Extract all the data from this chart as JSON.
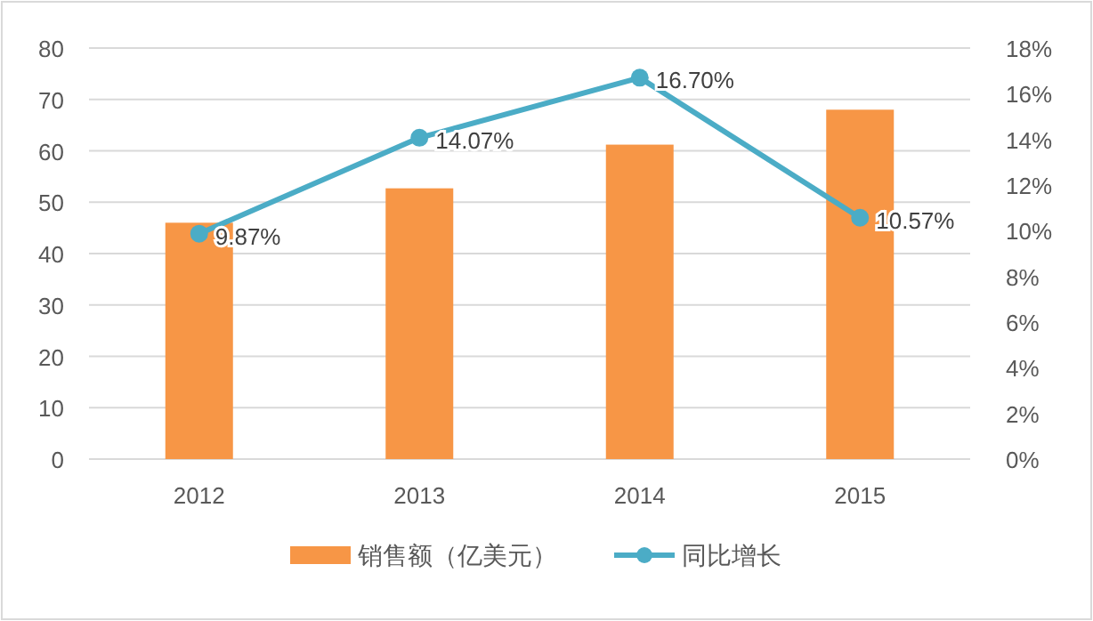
{
  "chart_data": {
    "type": "bar",
    "categories": [
      "2012",
      "2013",
      "2014",
      "2015"
    ],
    "series": [
      {
        "name": "销售额（亿美元）",
        "color": "#f79646",
        "values": [
          46.0,
          52.7,
          61.2,
          68.0
        ]
      },
      {
        "name": "同比增长",
        "type": "line",
        "axis": "y2",
        "color": "#4bacc6",
        "marker": "circle",
        "values": [
          9.87,
          14.07,
          16.7,
          10.57
        ],
        "value_labels": [
          "9.87%",
          "14.07%",
          "16.70%",
          "10.57%"
        ]
      }
    ],
    "ylim": [
      0,
      80
    ],
    "yticks": [
      0,
      10,
      20,
      30,
      40,
      50,
      60,
      70,
      80
    ],
    "y2lim": [
      0,
      18
    ],
    "y2ticks": [
      {
        "value": 0,
        "label": "0%"
      },
      {
        "value": 2,
        "label": "2%"
      },
      {
        "value": 4,
        "label": "4%"
      },
      {
        "value": 6,
        "label": "6%"
      },
      {
        "value": 8,
        "label": "8%"
      },
      {
        "value": 10,
        "label": "10%"
      },
      {
        "value": 12,
        "label": "12%"
      },
      {
        "value": 14,
        "label": "14%"
      },
      {
        "value": 16,
        "label": "16%"
      },
      {
        "value": 18,
        "label": "18%"
      }
    ],
    "grid": "y",
    "legend": "bottom"
  }
}
